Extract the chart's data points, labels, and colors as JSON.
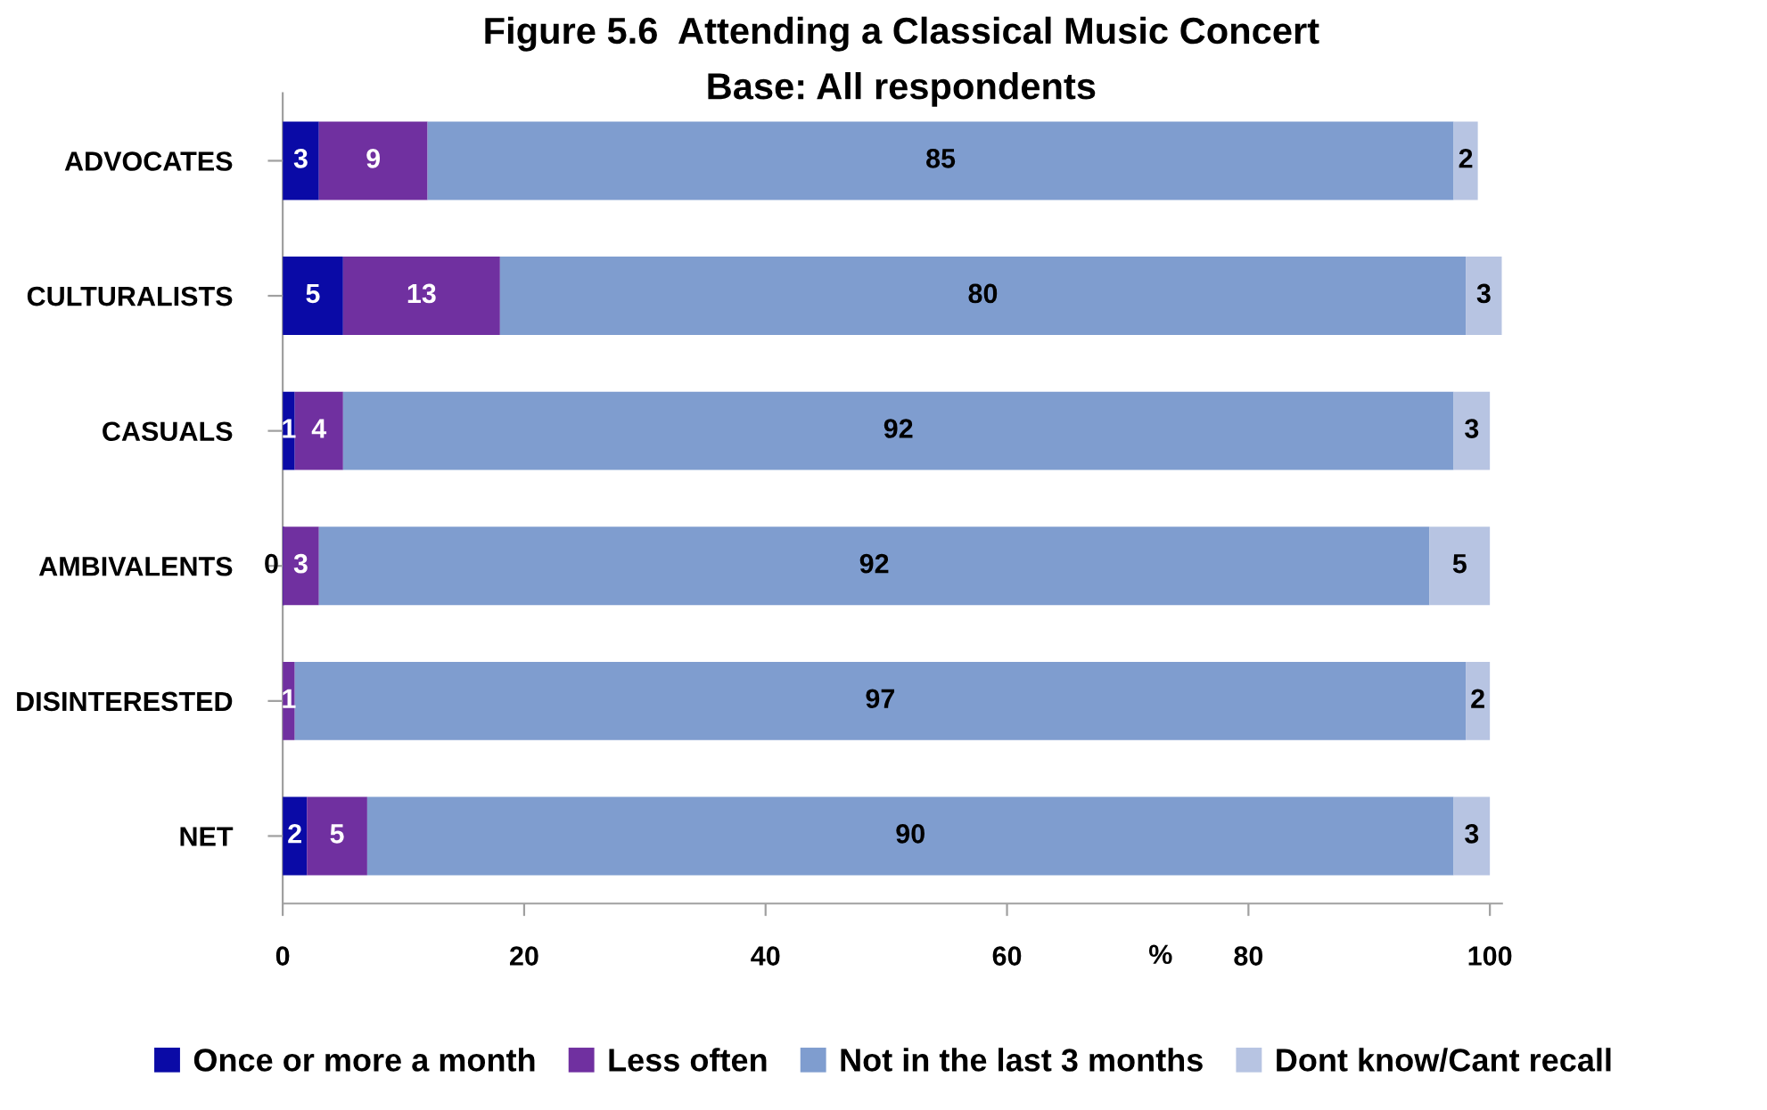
{
  "chart_data": {
    "type": "bar",
    "orientation": "horizontal",
    "stacked": true,
    "title": "Figure 5.6  Attending a Classical Music Concert",
    "subtitle": "Base: All respondents",
    "xlabel": "%",
    "categories": [
      "ADVOCATES",
      "CULTURALISTS",
      "CASUALS",
      "AMBIVALENTS",
      "DISINTERESTED",
      "NET"
    ],
    "series": [
      {
        "name": "Once or more a month",
        "color": "#0a0aa6",
        "values": [
          3,
          5,
          1,
          0,
          null,
          2
        ],
        "value_labels": [
          "3",
          "5",
          "1",
          "0",
          null,
          "2"
        ]
      },
      {
        "name": "Less often",
        "color": "#7030a0",
        "values": [
          9,
          13,
          4,
          3,
          1,
          5
        ],
        "value_labels": [
          "9",
          "13",
          "4",
          "3",
          "1",
          "5"
        ]
      },
      {
        "name": "Not in the last 3 months",
        "color": "#7f9dcf",
        "values": [
          85,
          80,
          92,
          92,
          97,
          90
        ],
        "value_labels": [
          "85",
          "80",
          "92",
          "92",
          "97",
          "90"
        ]
      },
      {
        "name": "Dont know/Cant recall",
        "color": "#b7c4e2",
        "values": [
          2,
          3,
          3,
          5,
          2,
          3
        ],
        "value_labels": [
          "2",
          "3",
          "3",
          "5",
          "2",
          "3"
        ]
      }
    ],
    "xlim": [
      0,
      101
    ],
    "xticks": [
      0,
      20,
      40,
      60,
      80,
      100
    ],
    "grid": false,
    "legend": "bottom"
  }
}
